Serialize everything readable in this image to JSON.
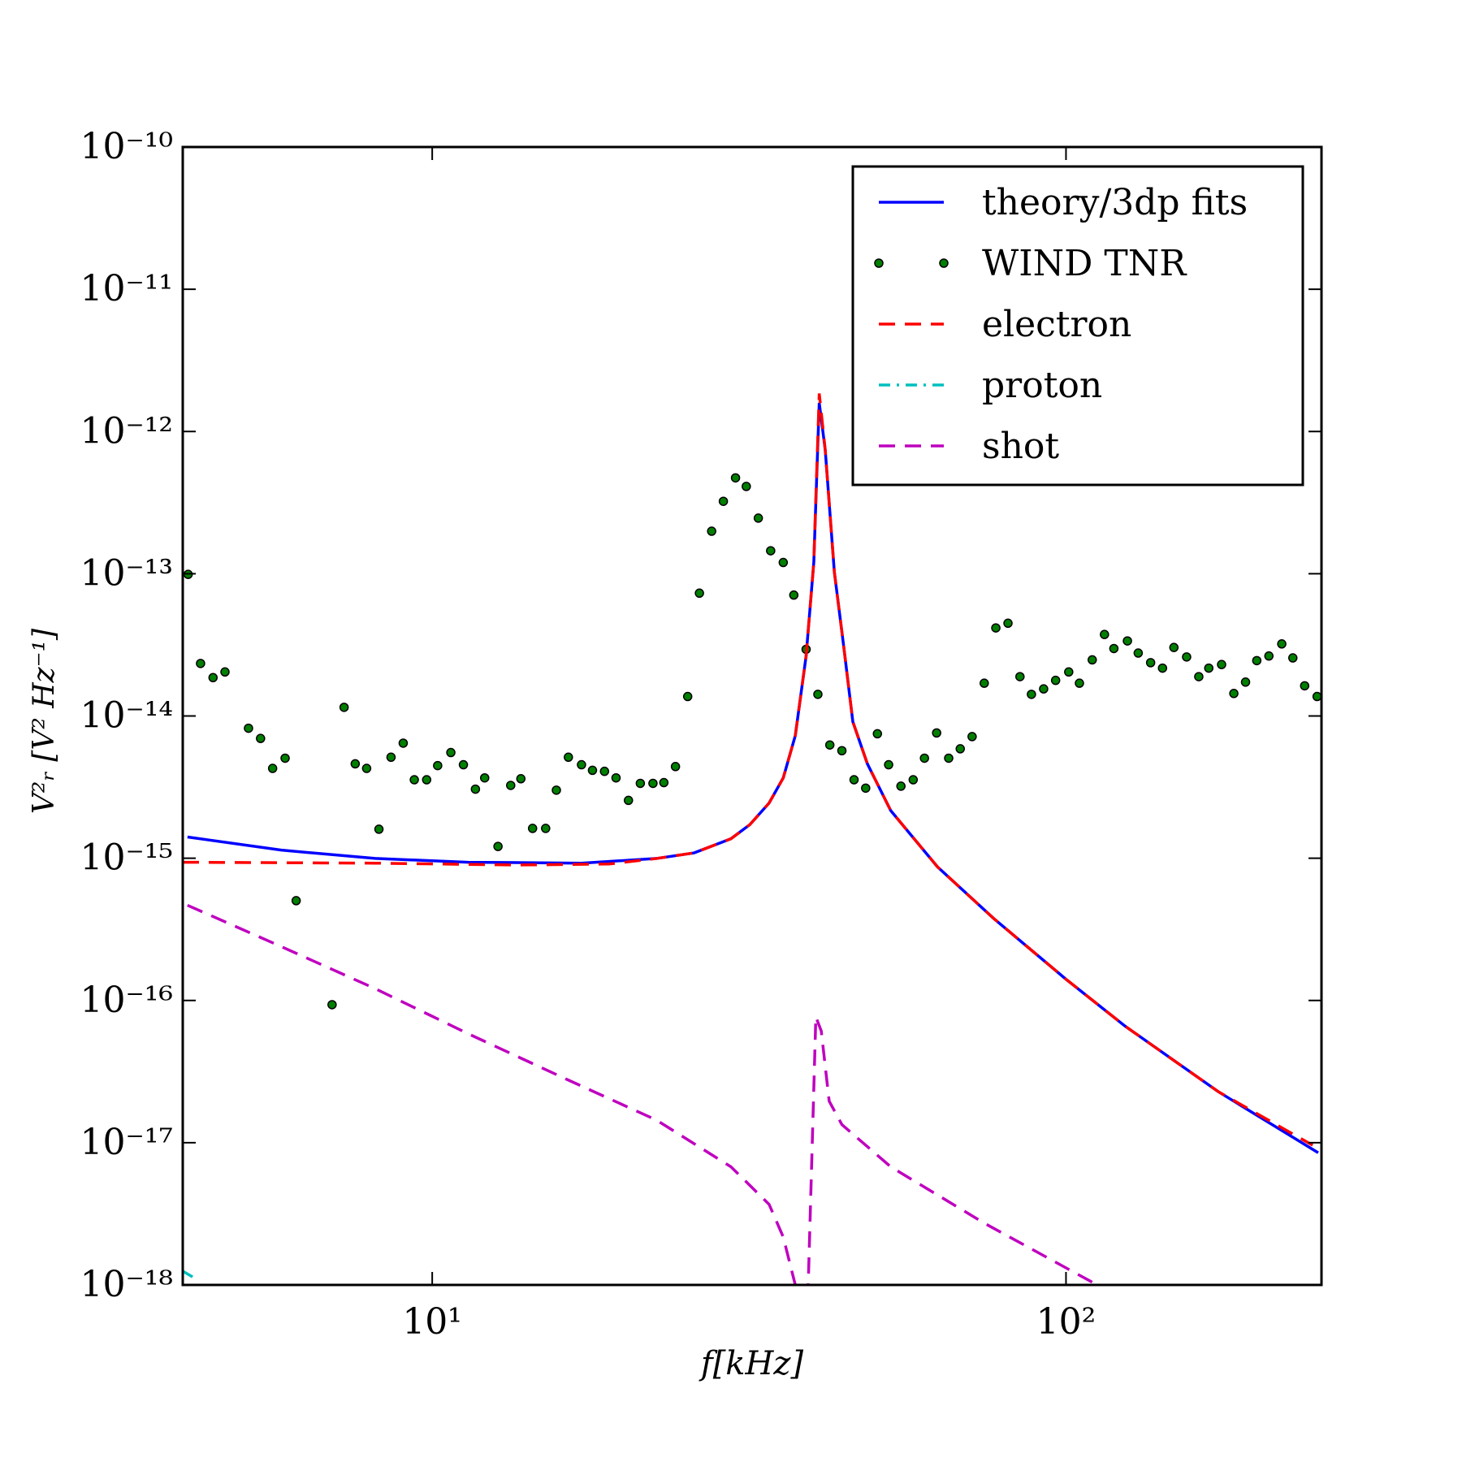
{
  "chart_data": {
    "type": "line",
    "xlabel": "f[kHz]",
    "ylabel": "V²ᵣ [V² Hz⁻¹]",
    "xscale": "log",
    "yscale": "log",
    "xlim": [
      4.04,
      253
    ],
    "ylim": [
      1e-18,
      1e-10
    ],
    "xticks": [
      {
        "value": 10,
        "label": "10¹"
      },
      {
        "value": 100,
        "label": "10²"
      }
    ],
    "yticks": [
      {
        "value": 1e-18,
        "label": "10⁻¹⁸"
      },
      {
        "value": 1e-17,
        "label": "10⁻¹⁷"
      },
      {
        "value": 1e-16,
        "label": "10⁻¹⁶"
      },
      {
        "value": 1e-15,
        "label": "10⁻¹⁵"
      },
      {
        "value": 1e-14,
        "label": "10⁻¹⁴"
      },
      {
        "value": 1e-13,
        "label": "10⁻¹³"
      },
      {
        "value": 1e-12,
        "label": "10⁻¹²"
      },
      {
        "value": 1e-11,
        "label": "10⁻¹¹"
      },
      {
        "value": 1e-10,
        "label": "10⁻¹⁰"
      }
    ],
    "legend": "upper right",
    "series": [
      {
        "name": "theory/3dp fits",
        "color": "#0000ff",
        "linestyle": "solid",
        "x": [
          4.11,
          5.78,
          8.13,
          11.4,
          17.2,
          22.6,
          25.9,
          29.6,
          31.7,
          34.0,
          35.8,
          37.4,
          38.9,
          40.0,
          40.8,
          41.7,
          43.1,
          44.6,
          46.1,
          48.6,
          52.9,
          62.7,
          76.9,
          100,
          124,
          174,
          250
        ],
        "values": [
          1.41e-15,
          1.14e-15,
          9.96e-16,
          9.37e-16,
          9.23e-16,
          9.96e-16,
          1.09e-15,
          1.37e-15,
          1.72e-15,
          2.44e-15,
          3.67e-15,
          7.27e-15,
          2.64e-14,
          1.2e-13,
          1.59e-12,
          7.4e-13,
          1.03e-13,
          3.07e-14,
          9.1e-15,
          4.61e-15,
          2.16e-15,
          8.69e-16,
          3.77e-16,
          1.41e-16,
          6.59e-17,
          2.28e-17,
          8.5e-18
        ]
      },
      {
        "name": "WIND TNR",
        "color": "#007f00",
        "linestyle": "none",
        "marker": "o",
        "x": [
          4.12,
          4.31,
          4.51,
          4.71,
          5.13,
          5.36,
          5.6,
          5.86,
          6.1,
          6.95,
          7.26,
          7.56,
          7.88,
          8.24,
          8.61,
          9.0,
          9.37,
          9.8,
          10.2,
          10.7,
          11.2,
          11.7,
          12.1,
          12.7,
          13.3,
          13.8,
          14.4,
          15.1,
          15.7,
          16.4,
          17.2,
          17.9,
          18.7,
          19.5,
          20.4,
          21.3,
          22.3,
          23.2,
          24.2,
          25.3,
          26.4,
          27.6,
          28.8,
          30.1,
          31.3,
          32.7,
          34.2,
          35.8,
          37.2,
          38.9,
          40.6,
          42.4,
          44.3,
          46.3,
          48.3,
          50.4,
          52.5,
          54.9,
          57.4,
          59.8,
          62.5,
          65.3,
          68.1,
          71.1,
          74.3,
          77.5,
          81.0,
          84.6,
          88.2,
          92.2,
          96.3,
          101,
          105,
          110,
          115,
          119,
          125,
          130,
          136,
          142,
          148,
          155,
          162,
          168,
          176,
          184,
          192,
          200,
          209,
          219,
          228,
          238,
          249
        ],
        "values": [
          9.9e-14,
          2.34e-14,
          1.86e-14,
          2.04e-14,
          8.2e-15,
          6.95e-15,
          4.28e-15,
          5.05e-15,
          5.03e-16,
          9.34e-17,
          1.15e-14,
          4.61e-15,
          4.28e-15,
          1.6e-15,
          5.13e-15,
          6.44e-15,
          3.56e-15,
          3.56e-15,
          4.48e-15,
          5.53e-15,
          4.54e-15,
          3.06e-15,
          3.67e-15,
          1.21e-15,
          3.25e-15,
          3.62e-15,
          1.62e-15,
          1.62e-15,
          3.01e-15,
          5.13e-15,
          4.54e-15,
          4.15e-15,
          4.08e-15,
          3.67e-15,
          2.55e-15,
          3.36e-15,
          3.36e-15,
          3.4e-15,
          4.41e-15,
          1.37e-14,
          7.3e-14,
          1.99e-13,
          3.23e-13,
          4.72e-13,
          4.11e-13,
          2.46e-13,
          1.45e-13,
          1.2e-13,
          7.08e-14,
          2.94e-14,
          1.42e-14,
          6.25e-15,
          5.7e-15,
          3.56e-15,
          3.11e-15,
          7.5e-15,
          4.54e-15,
          3.21e-15,
          3.56e-15,
          5.05e-15,
          7.6e-15,
          5.05e-15,
          5.88e-15,
          7.16e-15,
          1.7e-14,
          4.16e-14,
          4.49e-14,
          1.89e-14,
          1.42e-14,
          1.55e-14,
          1.78e-14,
          2.04e-14,
          1.7e-14,
          2.48e-14,
          3.74e-14,
          2.98e-14,
          3.37e-14,
          2.77e-14,
          2.37e-14,
          2.17e-14,
          3.03e-14,
          2.6e-14,
          1.89e-14,
          2.17e-14,
          2.3e-14,
          1.44e-14,
          1.73e-14,
          2.45e-14,
          2.64e-14,
          3.21e-14,
          2.56e-14,
          1.63e-14,
          1.37e-14
        ]
      },
      {
        "name": "electron",
        "color": "#ff0000",
        "linestyle": "dashed",
        "x": [
          4.04,
          8.13,
          13.5,
          19.0,
          22.6,
          25.9,
          29.6,
          31.7,
          34.0,
          35.8,
          37.4,
          38.9,
          40.0,
          40.8,
          41.7,
          43.1,
          44.6,
          46.1,
          48.6,
          52.9,
          62.7,
          76.9,
          100,
          124,
          174,
          245
        ],
        "values": [
          9.37e-16,
          9.23e-16,
          8.96e-16,
          9.1e-16,
          9.96e-16,
          1.09e-15,
          1.37e-15,
          1.72e-15,
          2.44e-15,
          3.67e-15,
          7.27e-15,
          2.64e-14,
          1.2e-13,
          1.85e-12,
          7.4e-13,
          1.03e-13,
          3.07e-14,
          9.1e-15,
          4.61e-15,
          2.16e-15,
          8.69e-16,
          3.77e-16,
          1.41e-16,
          6.59e-17,
          2.28e-17,
          9.6e-18
        ]
      },
      {
        "name": "proton",
        "color": "#00bfbf",
        "linestyle": "dashdot",
        "x": [
          4.04,
          4.25
        ],
        "values": [
          1.25e-18,
          1.095e-18
        ]
      },
      {
        "name": "shot",
        "color": "#bf00bf",
        "linestyle": "dashed",
        "x": [
          4.11,
          5.78,
          8.13,
          11.4,
          16.1,
          22.6,
          29.6,
          34.0,
          35.8,
          37.4,
          37.9,
          38.9,
          39.7,
          40.3,
          41.1,
          42.3,
          44.3,
          52.9,
          74.3,
          112
        ],
        "values": [
          4.67e-16,
          2.39e-16,
          1.21e-16,
          5.83e-17,
          2.86e-17,
          1.44e-17,
          6.77e-18,
          3.69e-18,
          2.17e-18,
          1e-18,
          3e-19,
          3e-19,
          7.3e-18,
          7.67e-17,
          6.1e-17,
          1.96e-17,
          1.34e-17,
          6.77e-18,
          2.72e-18,
          1e-18
        ]
      }
    ]
  }
}
